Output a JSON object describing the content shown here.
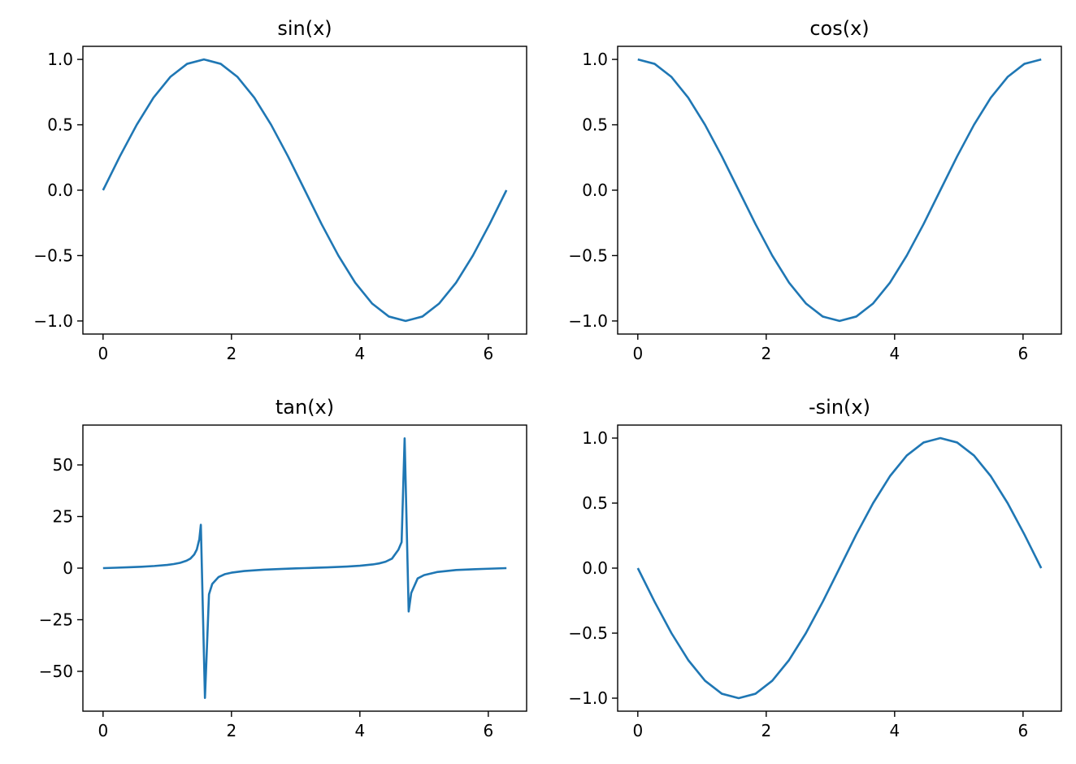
{
  "chart_data": [
    {
      "type": "line",
      "title": "sin(x)",
      "xlim": [
        -0.314,
        6.597
      ],
      "ylim": [
        -1.1,
        1.1
      ],
      "xticks": [
        0,
        2,
        4,
        6
      ],
      "xtick_labels": [
        "0",
        "2",
        "4",
        "6"
      ],
      "yticks": [
        -1.0,
        -0.5,
        0.0,
        0.5,
        1.0
      ],
      "ytick_labels": [
        "−1.0",
        "−0.5",
        "0.0",
        "0.5",
        "1.0"
      ],
      "color": "#1f77b4",
      "x": [
        0.0,
        0.262,
        0.524,
        0.785,
        1.047,
        1.309,
        1.571,
        1.833,
        2.094,
        2.356,
        2.618,
        2.88,
        3.142,
        3.403,
        3.665,
        3.927,
        4.189,
        4.451,
        4.712,
        4.974,
        5.236,
        5.498,
        5.76,
        6.021,
        6.283
      ],
      "y": [
        0.0,
        0.259,
        0.5,
        0.707,
        0.866,
        0.966,
        1.0,
        0.966,
        0.866,
        0.707,
        0.5,
        0.259,
        0.0,
        -0.259,
        -0.5,
        -0.707,
        -0.866,
        -0.966,
        -1.0,
        -0.966,
        -0.866,
        -0.707,
        -0.5,
        -0.259,
        0.0
      ]
    },
    {
      "type": "line",
      "title": "cos(x)",
      "xlim": [
        -0.314,
        6.597
      ],
      "ylim": [
        -1.1,
        1.1
      ],
      "xticks": [
        0,
        2,
        4,
        6
      ],
      "xtick_labels": [
        "0",
        "2",
        "4",
        "6"
      ],
      "yticks": [
        -1.0,
        -0.5,
        0.0,
        0.5,
        1.0
      ],
      "ytick_labels": [
        "−1.0",
        "−0.5",
        "0.0",
        "0.5",
        "1.0"
      ],
      "color": "#1f77b4",
      "x": [
        0.0,
        0.262,
        0.524,
        0.785,
        1.047,
        1.309,
        1.571,
        1.833,
        2.094,
        2.356,
        2.618,
        2.88,
        3.142,
        3.403,
        3.665,
        3.927,
        4.189,
        4.451,
        4.712,
        4.974,
        5.236,
        5.498,
        5.76,
        6.021,
        6.283
      ],
      "y": [
        1.0,
        0.966,
        0.866,
        0.707,
        0.5,
        0.259,
        0.0,
        -0.259,
        -0.5,
        -0.707,
        -0.866,
        -0.966,
        -1.0,
        -0.966,
        -0.866,
        -0.707,
        -0.5,
        -0.259,
        0.0,
        0.259,
        0.5,
        0.707,
        0.866,
        0.966,
        1.0
      ]
    },
    {
      "type": "line",
      "title": "tan(x)",
      "xlim": [
        -0.314,
        6.597
      ],
      "ylim": [
        -69.3,
        69.3
      ],
      "xticks": [
        0,
        2,
        4,
        6
      ],
      "xtick_labels": [
        "0",
        "2",
        "4",
        "6"
      ],
      "yticks": [
        -50,
        -25,
        0,
        25,
        50
      ],
      "ytick_labels": [
        "−50",
        "−25",
        "0",
        "25",
        "50"
      ],
      "color": "#1f77b4",
      "x": [
        0.0,
        0.2,
        0.4,
        0.6,
        0.8,
        1.0,
        1.1,
        1.2,
        1.3,
        1.36,
        1.42,
        1.46,
        1.5,
        1.523,
        1.587,
        1.65,
        1.7,
        1.8,
        1.9,
        2.0,
        2.2,
        2.5,
        2.8,
        3.0,
        3.14,
        3.3,
        3.5,
        3.8,
        4.0,
        4.2,
        4.3,
        4.4,
        4.5,
        4.6,
        4.65,
        4.697,
        4.76,
        4.8,
        4.9,
        5.0,
        5.2,
        5.5,
        5.8,
        6.0,
        6.283
      ],
      "y": [
        0.0,
        0.2,
        0.42,
        0.68,
        1.03,
        1.56,
        1.96,
        2.57,
        3.6,
        4.6,
        6.6,
        9.0,
        14.1,
        21.0,
        -62.9,
        -12.7,
        -7.7,
        -4.3,
        -2.9,
        -2.2,
        -1.4,
        -0.75,
        -0.36,
        -0.14,
        0.0,
        0.16,
        0.37,
        0.77,
        1.16,
        1.78,
        2.29,
        3.1,
        4.6,
        8.9,
        12.6,
        62.9,
        -21.0,
        -12.0,
        -5.0,
        -3.4,
        -1.9,
        -0.9,
        -0.5,
        -0.3,
        0.0
      ]
    },
    {
      "type": "line",
      "title": "-sin(x)",
      "xlim": [
        -0.314,
        6.597
      ],
      "ylim": [
        -1.1,
        1.1
      ],
      "xticks": [
        0,
        2,
        4,
        6
      ],
      "xtick_labels": [
        "0",
        "2",
        "4",
        "6"
      ],
      "yticks": [
        -1.0,
        -0.5,
        0.0,
        0.5,
        1.0
      ],
      "ytick_labels": [
        "−1.0",
        "−0.5",
        "0.0",
        "0.5",
        "1.0"
      ],
      "color": "#1f77b4",
      "x": [
        0.0,
        0.262,
        0.524,
        0.785,
        1.047,
        1.309,
        1.571,
        1.833,
        2.094,
        2.356,
        2.618,
        2.88,
        3.142,
        3.403,
        3.665,
        3.927,
        4.189,
        4.451,
        4.712,
        4.974,
        5.236,
        5.498,
        5.76,
        6.021,
        6.283
      ],
      "y": [
        0.0,
        -0.259,
        -0.5,
        -0.707,
        -0.866,
        -0.966,
        -1.0,
        -0.966,
        -0.866,
        -0.707,
        -0.5,
        -0.259,
        0.0,
        0.259,
        0.5,
        0.707,
        0.866,
        0.966,
        1.0,
        0.966,
        0.866,
        0.707,
        0.5,
        0.259,
        0.0
      ]
    }
  ]
}
